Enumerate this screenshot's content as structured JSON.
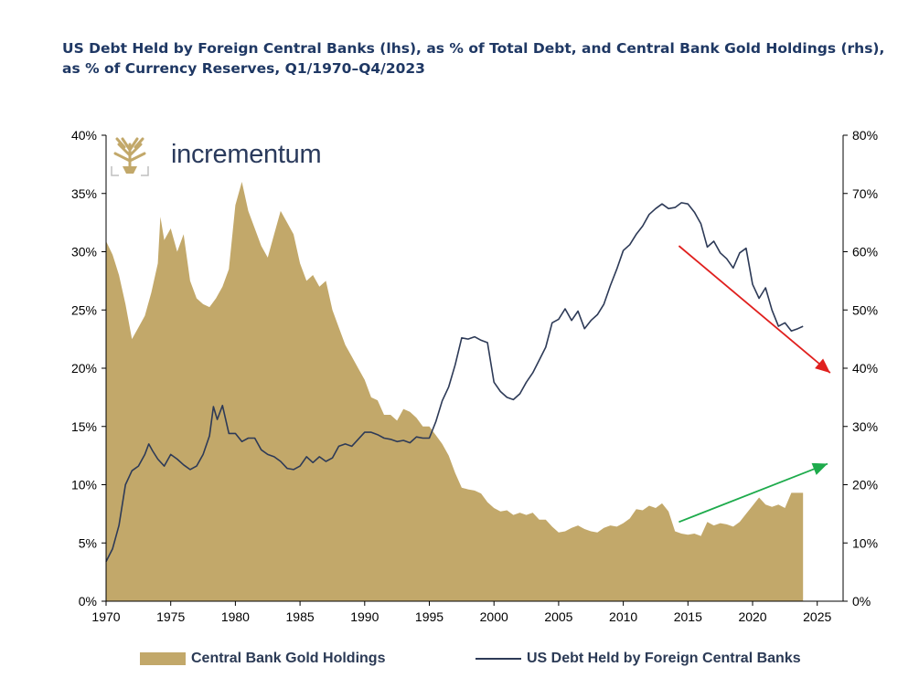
{
  "title": "US Debt Held by Foreign Central Banks (lhs), as % of Total Debt, and Central Bank Gold Holdings (rhs), as % of Currency Reserves, Q1/1970–Q4/2023",
  "logo": {
    "text": "incrementum"
  },
  "colors": {
    "gold": "#c2a86a",
    "debt_line": "#2d3a57",
    "red_arrow": "#e0201e",
    "green_arrow": "#1eab4c"
  },
  "chart_data": {
    "type": "area",
    "title": "US Debt Held by Foreign Central Banks (lhs), as % of Total Debt, and Central Bank Gold Holdings (rhs), as % of Currency Reserves, Q1/1970–Q4/2023",
    "x_ticks": [
      "1970",
      "1975",
      "1980",
      "1985",
      "1990",
      "1995",
      "2000",
      "2005",
      "2010",
      "2015",
      "2020",
      "2025"
    ],
    "xlim": [
      1970,
      2027
    ],
    "y_left_ticks": [
      "0%",
      "5%",
      "10%",
      "15%",
      "20%",
      "25%",
      "30%",
      "35%",
      "40%"
    ],
    "y_left_lim": [
      0,
      40
    ],
    "y_right_ticks": [
      "0%",
      "10%",
      "20%",
      "30%",
      "40%",
      "50%",
      "60%",
      "70%",
      "80%"
    ],
    "y_right_lim": [
      0,
      80
    ],
    "grid": false,
    "legend_position": "bottom",
    "series": [
      {
        "name": "Central Bank Gold Holdings",
        "type": "area",
        "axis": "right",
        "points": [
          [
            1970.0,
            61.8
          ],
          [
            1970.5,
            59.5
          ],
          [
            1971.0,
            56.0
          ],
          [
            1971.5,
            51.0
          ],
          [
            1972.0,
            45.0
          ],
          [
            1972.5,
            47.0
          ],
          [
            1973.0,
            49.0
          ],
          [
            1973.5,
            53.0
          ],
          [
            1974.0,
            58.0
          ],
          [
            1974.2,
            66.0
          ],
          [
            1974.5,
            62.0
          ],
          [
            1975.0,
            64.0
          ],
          [
            1975.5,
            60.0
          ],
          [
            1976.0,
            63.0
          ],
          [
            1976.5,
            55.0
          ],
          [
            1977.0,
            52.0
          ],
          [
            1977.5,
            51.0
          ],
          [
            1978.0,
            50.5
          ],
          [
            1978.5,
            52.0
          ],
          [
            1979.0,
            54.0
          ],
          [
            1979.5,
            57.0
          ],
          [
            1980.0,
            68.0
          ],
          [
            1980.5,
            72.0
          ],
          [
            1981.0,
            67.0
          ],
          [
            1981.5,
            64.0
          ],
          [
            1982.0,
            61.0
          ],
          [
            1982.5,
            59.0
          ],
          [
            1983.0,
            63.0
          ],
          [
            1983.5,
            67.0
          ],
          [
            1984.0,
            65.0
          ],
          [
            1984.5,
            63.0
          ],
          [
            1985.0,
            58.0
          ],
          [
            1985.5,
            55.0
          ],
          [
            1986.0,
            56.0
          ],
          [
            1986.5,
            54.0
          ],
          [
            1987.0,
            55.0
          ],
          [
            1987.5,
            50.0
          ],
          [
            1988.0,
            47.0
          ],
          [
            1988.5,
            44.0
          ],
          [
            1989.0,
            42.0
          ],
          [
            1989.5,
            40.0
          ],
          [
            1990.0,
            38.0
          ],
          [
            1990.5,
            35.0
          ],
          [
            1991.0,
            34.5
          ],
          [
            1991.5,
            32.0
          ],
          [
            1992.0,
            32.0
          ],
          [
            1992.5,
            31.0
          ],
          [
            1993.0,
            33.0
          ],
          [
            1993.5,
            32.5
          ],
          [
            1994.0,
            31.5
          ],
          [
            1994.5,
            30.0
          ],
          [
            1995.0,
            30.0
          ],
          [
            1995.5,
            28.5
          ],
          [
            1996.0,
            27.0
          ],
          [
            1996.5,
            25.0
          ],
          [
            1997.0,
            22.0
          ],
          [
            1997.5,
            19.5
          ],
          [
            1998.0,
            19.2
          ],
          [
            1998.5,
            19.0
          ],
          [
            1999.0,
            18.5
          ],
          [
            1999.5,
            17.0
          ],
          [
            2000.0,
            16.0
          ],
          [
            2000.5,
            15.4
          ],
          [
            2001.0,
            15.6
          ],
          [
            2001.5,
            14.8
          ],
          [
            2002.0,
            15.2
          ],
          [
            2002.5,
            14.8
          ],
          [
            2003.0,
            15.2
          ],
          [
            2003.5,
            14.0
          ],
          [
            2004.0,
            14.0
          ],
          [
            2004.5,
            12.8
          ],
          [
            2005.0,
            11.8
          ],
          [
            2005.5,
            12.0
          ],
          [
            2006.0,
            12.6
          ],
          [
            2006.5,
            13.0
          ],
          [
            2007.0,
            12.4
          ],
          [
            2007.5,
            12.0
          ],
          [
            2008.0,
            11.8
          ],
          [
            2008.5,
            12.6
          ],
          [
            2009.0,
            13.0
          ],
          [
            2009.5,
            12.8
          ],
          [
            2010.0,
            13.4
          ],
          [
            2010.5,
            14.2
          ],
          [
            2011.0,
            15.8
          ],
          [
            2011.5,
            15.6
          ],
          [
            2012.0,
            16.4
          ],
          [
            2012.5,
            16.0
          ],
          [
            2013.0,
            16.8
          ],
          [
            2013.5,
            15.4
          ],
          [
            2014.0,
            12.0
          ],
          [
            2014.5,
            11.6
          ],
          [
            2015.0,
            11.4
          ],
          [
            2015.5,
            11.6
          ],
          [
            2016.0,
            11.2
          ],
          [
            2016.5,
            13.6
          ],
          [
            2017.0,
            13.0
          ],
          [
            2017.5,
            13.4
          ],
          [
            2018.0,
            13.2
          ],
          [
            2018.5,
            12.8
          ],
          [
            2019.0,
            13.6
          ],
          [
            2019.5,
            15.0
          ],
          [
            2020.0,
            16.4
          ],
          [
            2020.5,
            17.8
          ],
          [
            2021.0,
            16.6
          ],
          [
            2021.5,
            16.2
          ],
          [
            2022.0,
            16.6
          ],
          [
            2022.5,
            16.0
          ],
          [
            2023.0,
            18.6
          ],
          [
            2023.9,
            18.6
          ]
        ]
      },
      {
        "name": "US Debt Held by Foreign Central Banks",
        "type": "line",
        "axis": "left",
        "points": [
          [
            1970.0,
            3.4
          ],
          [
            1970.5,
            4.5
          ],
          [
            1971.0,
            6.5
          ],
          [
            1971.5,
            10.0
          ],
          [
            1972.0,
            11.2
          ],
          [
            1972.5,
            11.6
          ],
          [
            1973.0,
            12.6
          ],
          [
            1973.3,
            13.5
          ],
          [
            1973.6,
            12.9
          ],
          [
            1974.0,
            12.2
          ],
          [
            1974.5,
            11.6
          ],
          [
            1975.0,
            12.6
          ],
          [
            1975.5,
            12.2
          ],
          [
            1976.0,
            11.7
          ],
          [
            1976.5,
            11.3
          ],
          [
            1977.0,
            11.6
          ],
          [
            1977.5,
            12.6
          ],
          [
            1978.0,
            14.2
          ],
          [
            1978.3,
            16.7
          ],
          [
            1978.6,
            15.6
          ],
          [
            1979.0,
            16.8
          ],
          [
            1979.5,
            14.4
          ],
          [
            1980.0,
            14.4
          ],
          [
            1980.5,
            13.7
          ],
          [
            1981.0,
            14.0
          ],
          [
            1981.5,
            14.0
          ],
          [
            1982.0,
            13.0
          ],
          [
            1982.5,
            12.6
          ],
          [
            1983.0,
            12.4
          ],
          [
            1983.5,
            12.0
          ],
          [
            1984.0,
            11.4
          ],
          [
            1984.5,
            11.3
          ],
          [
            1985.0,
            11.6
          ],
          [
            1985.5,
            12.4
          ],
          [
            1986.0,
            11.9
          ],
          [
            1986.5,
            12.4
          ],
          [
            1987.0,
            12.0
          ],
          [
            1987.5,
            12.3
          ],
          [
            1988.0,
            13.3
          ],
          [
            1988.5,
            13.5
          ],
          [
            1989.0,
            13.3
          ],
          [
            1989.5,
            13.9
          ],
          [
            1990.0,
            14.5
          ],
          [
            1990.5,
            14.5
          ],
          [
            1991.0,
            14.3
          ],
          [
            1991.5,
            14.0
          ],
          [
            1992.0,
            13.9
          ],
          [
            1992.5,
            13.7
          ],
          [
            1993.0,
            13.8
          ],
          [
            1993.5,
            13.6
          ],
          [
            1994.0,
            14.1
          ],
          [
            1994.5,
            14.0
          ],
          [
            1995.0,
            14.0
          ],
          [
            1995.5,
            15.4
          ],
          [
            1996.0,
            17.2
          ],
          [
            1996.5,
            18.4
          ],
          [
            1997.0,
            20.3
          ],
          [
            1997.5,
            22.6
          ],
          [
            1998.0,
            22.5
          ],
          [
            1998.5,
            22.7
          ],
          [
            1999.0,
            22.4
          ],
          [
            1999.5,
            22.2
          ],
          [
            2000.0,
            18.8
          ],
          [
            2000.5,
            18.0
          ],
          [
            2001.0,
            17.5
          ],
          [
            2001.5,
            17.3
          ],
          [
            2002.0,
            17.8
          ],
          [
            2002.5,
            18.8
          ],
          [
            2003.0,
            19.6
          ],
          [
            2003.5,
            20.7
          ],
          [
            2004.0,
            21.8
          ],
          [
            2004.5,
            23.9
          ],
          [
            2005.0,
            24.2
          ],
          [
            2005.5,
            25.1
          ],
          [
            2006.0,
            24.1
          ],
          [
            2006.5,
            24.9
          ],
          [
            2007.0,
            23.4
          ],
          [
            2007.5,
            24.1
          ],
          [
            2008.0,
            24.6
          ],
          [
            2008.5,
            25.5
          ],
          [
            2009.0,
            27.1
          ],
          [
            2009.5,
            28.5
          ],
          [
            2010.0,
            30.1
          ],
          [
            2010.5,
            30.6
          ],
          [
            2011.0,
            31.5
          ],
          [
            2011.5,
            32.2
          ],
          [
            2012.0,
            33.2
          ],
          [
            2012.5,
            33.7
          ],
          [
            2013.0,
            34.1
          ],
          [
            2013.5,
            33.7
          ],
          [
            2014.0,
            33.8
          ],
          [
            2014.5,
            34.2
          ],
          [
            2015.0,
            34.1
          ],
          [
            2015.5,
            33.4
          ],
          [
            2016.0,
            32.4
          ],
          [
            2016.5,
            30.4
          ],
          [
            2017.0,
            30.9
          ],
          [
            2017.5,
            29.9
          ],
          [
            2018.0,
            29.4
          ],
          [
            2018.5,
            28.6
          ],
          [
            2019.0,
            29.9
          ],
          [
            2019.5,
            30.3
          ],
          [
            2020.0,
            27.2
          ],
          [
            2020.5,
            26.0
          ],
          [
            2021.0,
            26.9
          ],
          [
            2021.5,
            25.0
          ],
          [
            2022.0,
            23.6
          ],
          [
            2022.5,
            23.9
          ],
          [
            2023.0,
            23.2
          ],
          [
            2023.5,
            23.4
          ],
          [
            2023.9,
            23.6
          ]
        ]
      }
    ],
    "annotations": [
      {
        "type": "arrow",
        "color": "red",
        "from": [
          2014.3,
          30.5
        ],
        "to": [
          2026.0,
          19.6
        ]
      },
      {
        "type": "arrow",
        "color": "green",
        "from": [
          2014.3,
          6.8
        ],
        "to": [
          2025.8,
          11.8
        ]
      }
    ]
  },
  "legend": [
    {
      "label": "Central Bank Gold Holdings"
    },
    {
      "label": "US Debt Held by Foreign Central Banks"
    }
  ]
}
